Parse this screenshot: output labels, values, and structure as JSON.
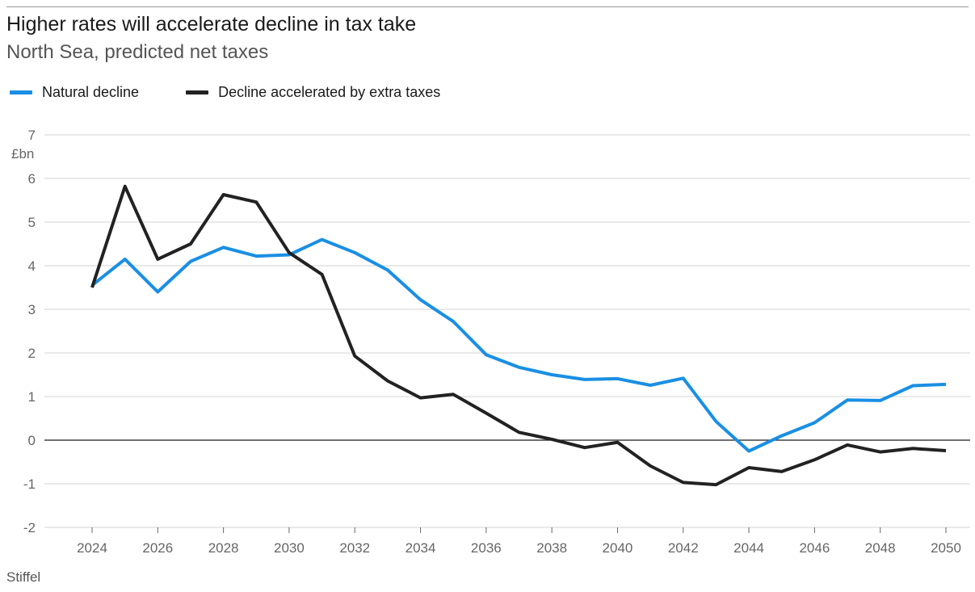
{
  "chart_data": {
    "type": "line",
    "title": "Higher rates will accelerate decline in tax take",
    "subtitle": "North Sea, predicted net taxes",
    "source": "Stiffel",
    "ylabel": "£bn",
    "xlabel": "",
    "ylim": [
      -2,
      7
    ],
    "yticks": [
      7,
      6,
      5,
      4,
      3,
      2,
      1,
      0,
      -1,
      -2
    ],
    "xlim": [
      2024,
      2050
    ],
    "xticks": [
      2024,
      2026,
      2028,
      2030,
      2032,
      2034,
      2036,
      2038,
      2040,
      2042,
      2044,
      2046,
      2048,
      2050
    ],
    "grid": true,
    "legend_position": "top-left",
    "x": [
      2024,
      2025,
      2026,
      2027,
      2028,
      2029,
      2030,
      2031,
      2032,
      2033,
      2034,
      2035,
      2036,
      2037,
      2038,
      2039,
      2040,
      2041,
      2042,
      2043,
      2044,
      2045,
      2046,
      2047,
      2048,
      2049,
      2050
    ],
    "series": [
      {
        "name": "Natural decline",
        "color": "#1a8fe3",
        "values": [
          3.55,
          4.15,
          3.4,
          4.1,
          4.42,
          4.22,
          4.25,
          4.6,
          4.3,
          3.9,
          3.22,
          2.72,
          1.96,
          1.67,
          1.5,
          1.39,
          1.41,
          1.26,
          1.42,
          0.43,
          -0.25,
          0.1,
          0.4,
          0.92,
          0.91,
          1.25,
          1.28
        ]
      },
      {
        "name": "Decline accelerated by extra taxes",
        "color": "#222222",
        "values": [
          3.5,
          5.82,
          4.15,
          4.5,
          5.63,
          5.46,
          4.3,
          3.8,
          1.93,
          1.36,
          0.97,
          1.05,
          0.62,
          0.18,
          0.02,
          -0.17,
          -0.05,
          -0.59,
          -0.97,
          -1.02,
          -0.63,
          -0.72,
          -0.45,
          -0.11,
          -0.27,
          -0.19,
          -0.24
        ]
      }
    ]
  }
}
